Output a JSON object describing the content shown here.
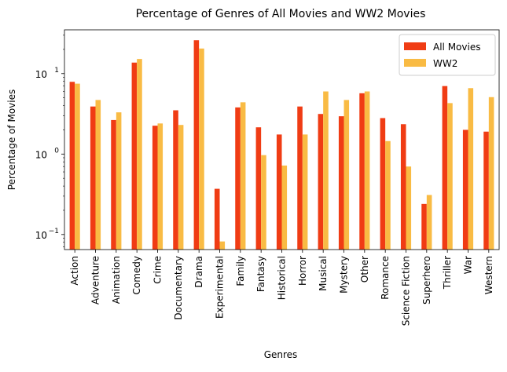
{
  "chart_data": {
    "type": "bar",
    "title": "Percentage of Genres of All Movies and WW2 Movies",
    "xlabel": "Genres",
    "ylabel": "Percentage of Movies",
    "yscale": "log",
    "ylim": [
      0.065,
      35
    ],
    "yticks": [
      {
        "value": 0.1,
        "base": "10",
        "exp": "−1"
      },
      {
        "value": 1,
        "base": "10",
        "exp": "0"
      },
      {
        "value": 10,
        "base": "10",
        "exp": "1"
      }
    ],
    "legend_position": "top-right",
    "grid": false,
    "categories": [
      "Action",
      "Adventure",
      "Animation",
      "Comedy",
      "Crime",
      "Documentary",
      "Drama",
      "Experimental",
      "Family",
      "Fantasy",
      "Historical",
      "Horror",
      "Musical",
      "Mystery",
      "Other",
      "Romance",
      "Science Fiction",
      "Superhero",
      "Thriller",
      "War",
      "Western"
    ],
    "series": [
      {
        "name": "All Movies",
        "color": "#f03c14",
        "values": [
          7.9,
          3.9,
          2.65,
          13.7,
          2.25,
          3.5,
          26.0,
          0.37,
          3.8,
          2.15,
          1.75,
          3.9,
          3.15,
          2.95,
          5.7,
          2.8,
          2.35,
          0.24,
          7.0,
          2.0,
          1.9
        ]
      },
      {
        "name": "WW2",
        "color": "#f9bb44",
        "values": [
          7.5,
          4.7,
          3.3,
          15.2,
          2.4,
          2.3,
          20.5,
          0.082,
          4.4,
          0.97,
          0.72,
          1.75,
          6.0,
          4.7,
          6.0,
          1.45,
          0.7,
          0.31,
          4.3,
          6.6,
          5.1
        ]
      }
    ]
  }
}
